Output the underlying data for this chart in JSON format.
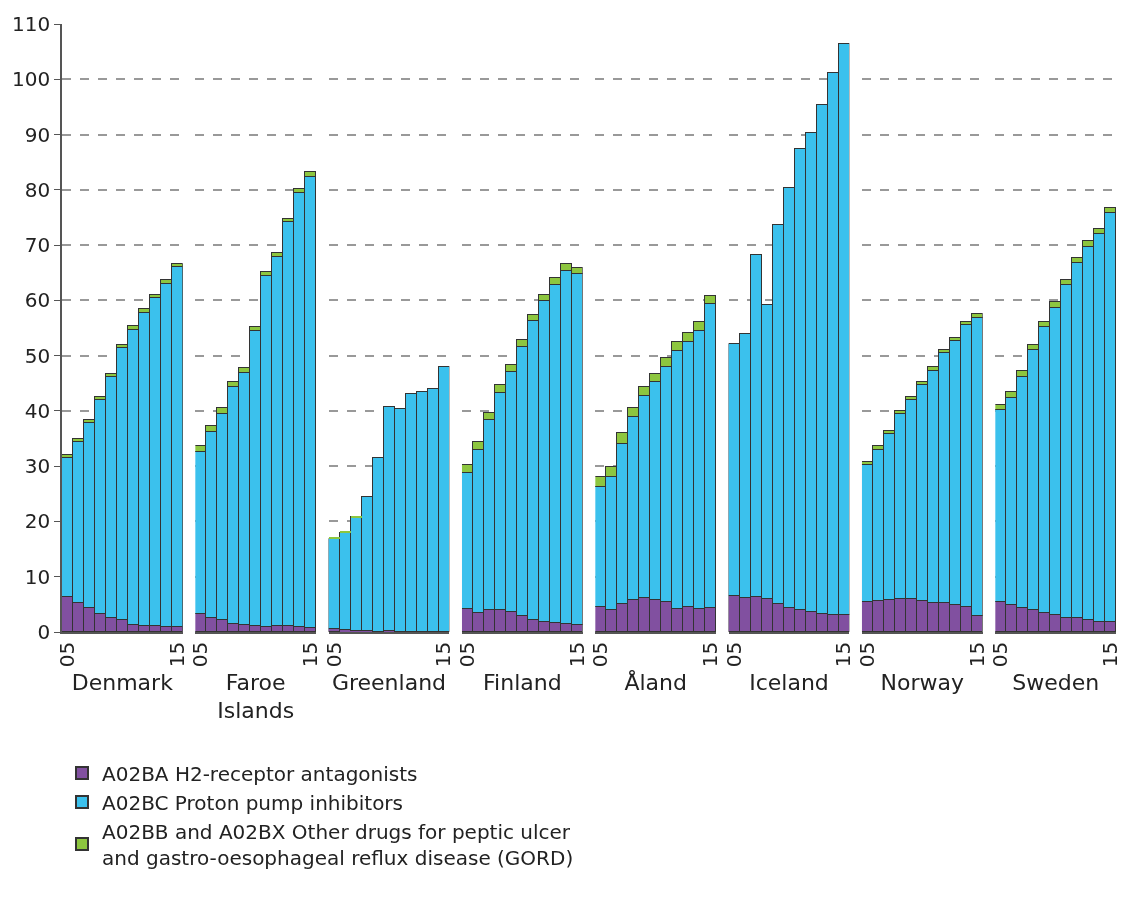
{
  "chart_data": [
    {
      "type": "bar",
      "stacked": true,
      "xlabel": "Denmark",
      "categories": [
        "05",
        null,
        null,
        null,
        null,
        null,
        null,
        null,
        null,
        null,
        "15"
      ],
      "ylim": [
        0,
        110
      ],
      "yticks": [
        0,
        10,
        20,
        30,
        40,
        50,
        60,
        70,
        80,
        90,
        100,
        110
      ],
      "grid": "y",
      "legend": "bottom",
      "series": [
        {
          "name": "A02BA H2-receptor antagonists",
          "color": "#8150a0",
          "values": [
            6.3,
            5.3,
            4.3,
            3.2,
            2.6,
            2.2,
            1.3,
            1.0,
            1.0,
            0.9,
            0.9
          ]
        },
        {
          "name": "A02BC Proton pump inhibitors",
          "color": "#3bc1ed",
          "values": [
            25.1,
            29.1,
            33.5,
            38.7,
            43.5,
            49.2,
            53.4,
            56.8,
            59.4,
            62.1,
            65.1
          ]
        },
        {
          "name": "A02BB and A02BX Other drugs for peptic ulcer\nand gastro-oesophageal reflux disease (GORD)",
          "color": "#8dc63f",
          "values": [
            0.6,
            0.6,
            0.6,
            0.6,
            0.6,
            0.6,
            0.6,
            0.6,
            0.6,
            0.6,
            0.6
          ]
        }
      ]
    },
    {
      "type": "bar",
      "stacked": true,
      "xlabel": "Faroe\nIslands",
      "categories": [
        "05",
        null,
        null,
        null,
        null,
        null,
        null,
        null,
        null,
        null,
        "15"
      ],
      "ylim": [
        0,
        110
      ],
      "yticks": [
        0,
        10,
        20,
        30,
        40,
        50,
        60,
        70,
        80,
        90,
        100,
        110
      ],
      "grid": "y",
      "tick_labels": "x",
      "series": [
        {
          "color": "#8150a0",
          "values": [
            3.3,
            2.6,
            2.2,
            1.4,
            1.2,
            1.0,
            0.9,
            1.0,
            1.0,
            0.9,
            0.8
          ]
        },
        {
          "color": "#3bc1ed",
          "values": [
            29.3,
            33.5,
            37.3,
            42.9,
            45.6,
            53.4,
            63.5,
            66.8,
            73.1,
            78.5,
            81.6
          ]
        },
        {
          "color": "#8dc63f",
          "values": [
            1.1,
            1.1,
            1.0,
            0.9,
            0.9,
            0.8,
            0.7,
            0.8,
            0.7,
            0.8,
            0.8
          ]
        }
      ]
    },
    {
      "type": "bar",
      "stacked": true,
      "xlabel": "Greenland",
      "categories": [
        "05",
        null,
        null,
        null,
        null,
        null,
        null,
        null,
        null,
        null,
        "15"
      ],
      "ylim": [
        0,
        110
      ],
      "yticks": [
        0,
        10,
        20,
        30,
        40,
        50,
        60,
        70,
        80,
        90,
        100,
        110
      ],
      "grid": "y",
      "tick_labels": "x",
      "series": [
        {
          "color": "#8150a0",
          "values": [
            0.6,
            0.3,
            0.1,
            0.1,
            0,
            0.1,
            0,
            0,
            0,
            0,
            0
          ]
        },
        {
          "color": "#3bc1ed",
          "values": [
            16.2,
            17.7,
            20.7,
            24.3,
            31.5,
            40.6,
            40.3,
            43.1,
            43.5,
            43.9,
            47.9
          ]
        },
        {
          "color": "#8dc63f",
          "values": [
            0.4,
            0.3,
            0.2,
            0,
            0,
            0,
            0,
            0,
            0,
            0,
            0
          ]
        }
      ]
    },
    {
      "type": "bar",
      "stacked": true,
      "xlabel": "Finland",
      "categories": [
        "05",
        null,
        null,
        null,
        null,
        null,
        null,
        null,
        null,
        null,
        "15"
      ],
      "ylim": [
        0,
        110
      ],
      "yticks": [
        0,
        10,
        20,
        30,
        40,
        50,
        60,
        70,
        80,
        90,
        100,
        110
      ],
      "grid": "y",
      "tick_labels": "x",
      "series": [
        {
          "color": "#8150a0",
          "values": [
            4.1,
            3.4,
            3.9,
            3.9,
            3.6,
            2.9,
            2.2,
            1.9,
            1.6,
            1.5,
            1.3
          ]
        },
        {
          "color": "#3bc1ed",
          "values": [
            24.6,
            29.6,
            34.5,
            39.4,
            43.4,
            48.7,
            54.0,
            57.9,
            61.2,
            63.9,
            63.4
          ]
        },
        {
          "color": "#8dc63f",
          "values": [
            1.5,
            1.4,
            1.3,
            1.3,
            1.3,
            1.2,
            1.2,
            1.2,
            1.2,
            1.1,
            1.1
          ]
        }
      ]
    },
    {
      "type": "bar",
      "stacked": true,
      "xlabel": "Åland",
      "categories": [
        "05",
        null,
        null,
        null,
        null,
        null,
        null,
        null,
        null,
        null,
        "15"
      ],
      "ylim": [
        0,
        110
      ],
      "yticks": [
        0,
        10,
        20,
        30,
        40,
        50,
        60,
        70,
        80,
        90,
        100,
        110
      ],
      "grid": "y",
      "tick_labels": "x",
      "series": [
        {
          "color": "#8150a0",
          "values": [
            4.6,
            4.0,
            5.0,
            5.7,
            6.2,
            5.7,
            5.4,
            4.1,
            4.5,
            4.1,
            4.3
          ]
        },
        {
          "color": "#3bc1ed",
          "values": [
            21.7,
            24.0,
            29.1,
            33.2,
            36.5,
            39.5,
            42.6,
            46.7,
            47.9,
            50.3,
            55.0
          ]
        },
        {
          "color": "#8dc63f",
          "values": [
            1.7,
            1.8,
            1.9,
            1.6,
            1.7,
            1.5,
            1.6,
            1.7,
            1.7,
            1.7,
            1.4
          ]
        }
      ]
    },
    {
      "type": "bar",
      "stacked": true,
      "xlabel": "Iceland",
      "categories": [
        "05",
        null,
        null,
        null,
        null,
        null,
        null,
        null,
        null,
        null,
        "15"
      ],
      "ylim": [
        0,
        110
      ],
      "yticks": [
        0,
        10,
        20,
        30,
        40,
        50,
        60,
        70,
        80,
        90,
        100,
        110
      ],
      "grid": "y",
      "tick_labels": "x",
      "series": [
        {
          "color": "#8150a0",
          "values": [
            6.6,
            6.1,
            6.3,
            5.9,
            5.1,
            4.4,
            3.9,
            3.6,
            3.3,
            3.1,
            3.0
          ]
        },
        {
          "color": "#3bc1ed",
          "values": [
            45.5,
            47.8,
            61.9,
            53.2,
            68.5,
            75.9,
            83.4,
            86.7,
            92.1,
            98.1,
            103.3
          ]
        },
        {
          "color": "#8dc63f",
          "values": [
            0,
            0,
            0,
            0,
            0,
            0,
            0,
            0,
            0,
            0,
            0
          ]
        }
      ]
    },
    {
      "type": "bar",
      "stacked": true,
      "xlabel": "Norway",
      "categories": [
        "05",
        null,
        null,
        null,
        null,
        null,
        null,
        null,
        null,
        null,
        "15"
      ],
      "ylim": [
        0,
        110
      ],
      "yticks": [
        0,
        10,
        20,
        30,
        40,
        50,
        60,
        70,
        80,
        90,
        100,
        110
      ],
      "grid": "y",
      "tick_labels": "x",
      "series": [
        {
          "color": "#8150a0",
          "values": [
            5.4,
            5.6,
            5.7,
            5.9,
            5.9,
            5.6,
            5.2,
            5.2,
            4.8,
            4.5,
            2.9
          ]
        },
        {
          "color": "#3bc1ed",
          "values": [
            24.8,
            27.4,
            30.1,
            33.5,
            36.1,
            39.1,
            42.1,
            45.2,
            47.8,
            51.0,
            54.0
          ]
        },
        {
          "color": "#8dc63f",
          "values": [
            0.6,
            0.6,
            0.6,
            0.6,
            0.6,
            0.6,
            0.6,
            0.6,
            0.6,
            0.6,
            0.6
          ]
        }
      ]
    },
    {
      "type": "bar",
      "stacked": true,
      "xlabel": "Sweden",
      "categories": [
        "05",
        null,
        null,
        null,
        null,
        null,
        null,
        null,
        null,
        null,
        "15"
      ],
      "ylim": [
        0,
        110
      ],
      "yticks": [
        0,
        10,
        20,
        30,
        40,
        50,
        60,
        70,
        80,
        90,
        100,
        110
      ],
      "grid": "y",
      "tick_labels": "x",
      "series": [
        {
          "color": "#8150a0",
          "values": [
            5.4,
            4.8,
            4.3,
            4.0,
            3.4,
            3.1,
            2.5,
            2.5,
            2.2,
            1.9,
            1.8
          ]
        },
        {
          "color": "#3bc1ed",
          "values": [
            34.7,
            37.6,
            41.9,
            47.0,
            51.7,
            55.6,
            60.2,
            64.2,
            67.5,
            70.1,
            74.0
          ]
        },
        {
          "color": "#8dc63f",
          "values": [
            1.0,
            1.0,
            1.0,
            1.0,
            1.0,
            1.0,
            1.0,
            1.0,
            1.0,
            1.0,
            1.0
          ]
        }
      ]
    }
  ]
}
